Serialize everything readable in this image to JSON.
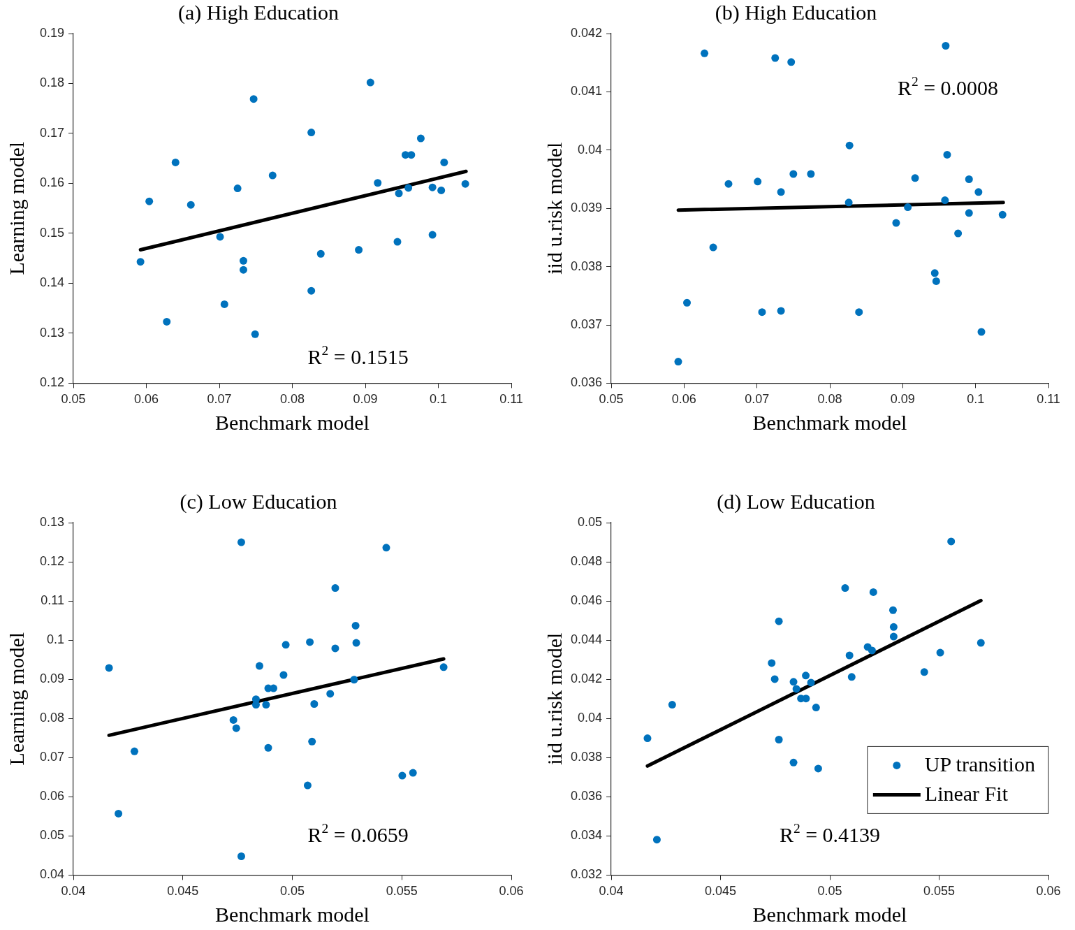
{
  "chart_data": [
    {
      "type": "scatter",
      "title": "(a) High Education",
      "xlabel": "Benchmark model",
      "ylabel": "Learning model",
      "xlim": [
        0.05,
        0.11
      ],
      "xticks": [
        0.05,
        0.06,
        0.07,
        0.08,
        0.09,
        0.1,
        0.11
      ],
      "ylim": [
        0.12,
        0.19
      ],
      "yticks": [
        0.12,
        0.13,
        0.14,
        0.15,
        0.16,
        0.17,
        0.18,
        0.19
      ],
      "grid": false,
      "legend": false,
      "marker": "circle",
      "annotations": [
        "R$^{2}$ = 0.1515"
      ],
      "series": [
        {
          "color": "#0072bd",
          "x": [
            0.0592,
            0.0604,
            0.0628,
            0.064,
            0.0661,
            0.0701,
            0.0707,
            0.0725,
            0.0733,
            0.0733,
            0.0747,
            0.0749,
            0.0773,
            0.0826,
            0.0826,
            0.0839,
            0.0891,
            0.0907,
            0.0917,
            0.0944,
            0.0946,
            0.0955,
            0.0963,
            0.0959,
            0.0976,
            0.0992,
            0.0992,
            0.1004,
            0.1008,
            0.1037
          ],
          "values": [
            0.1443,
            0.1564,
            0.1323,
            0.1642,
            0.1557,
            0.1493,
            0.1358,
            0.159,
            0.1445,
            0.1427,
            0.1769,
            0.1298,
            0.1616,
            0.1702,
            0.1385,
            0.1459,
            0.1467,
            0.1802,
            0.1601,
            0.1483,
            0.158,
            0.1657,
            0.1657,
            0.1591,
            0.169,
            0.1592,
            0.1497,
            0.1586,
            0.1642,
            0.1599
          ]
        },
        {
          "type": "line",
          "color": "#000000",
          "line_style": "solid",
          "marker": "none",
          "x": [
            0.0592,
            0.1038
          ],
          "values": [
            0.1467,
            0.1624
          ]
        }
      ]
    },
    {
      "type": "scatter",
      "title": "(b) High Education",
      "xlabel": "Benchmark model",
      "ylabel": "iid u.risk model",
      "xlim": [
        0.05,
        0.11
      ],
      "xticks": [
        0.05,
        0.06,
        0.07,
        0.08,
        0.09,
        0.1,
        0.11
      ],
      "ylim": [
        0.036,
        0.042
      ],
      "yticks": [
        0.036,
        0.037,
        0.038,
        0.039,
        0.04,
        0.041,
        0.042
      ],
      "grid": false,
      "legend": false,
      "marker": "circle",
      "annotations": [
        "R$^{2}$ = 0.0008"
      ],
      "series": [
        {
          "color": "#0072bd",
          "x": [
            0.0592,
            0.0604,
            0.0628,
            0.064,
            0.0661,
            0.0701,
            0.0707,
            0.0725,
            0.0733,
            0.0733,
            0.0747,
            0.075,
            0.0774,
            0.0827,
            0.0826,
            0.084,
            0.0891,
            0.0907,
            0.0917,
            0.0944,
            0.0946,
            0.0959,
            0.0961,
            0.0958,
            0.0976,
            0.0991,
            0.0991,
            0.1004,
            0.1008,
            0.1037
          ],
          "values": [
            0.03637,
            0.03738,
            0.04166,
            0.03833,
            0.03942,
            0.03946,
            0.03722,
            0.04158,
            0.03928,
            0.03724,
            0.04151,
            0.03959,
            0.03959,
            0.04008,
            0.0391,
            0.03722,
            0.03875,
            0.03902,
            0.03952,
            0.03789,
            0.03775,
            0.04179,
            0.03992,
            0.03914,
            0.03857,
            0.0395,
            0.03892,
            0.03928,
            0.03688,
            0.03889
          ]
        },
        {
          "type": "line",
          "color": "#000000",
          "line_style": "solid",
          "marker": "none",
          "x": [
            0.0592,
            0.1038
          ],
          "values": [
            0.03897,
            0.0391
          ]
        }
      ]
    },
    {
      "type": "scatter",
      "title": "(c) Low Education",
      "xlabel": "Benchmark model",
      "ylabel": "Learning model",
      "xlim": [
        0.04,
        0.06
      ],
      "xticks": [
        0.04,
        0.045,
        0.05,
        0.055,
        0.06
      ],
      "ylim": [
        0.04,
        0.13
      ],
      "yticks": [
        0.04,
        0.05,
        0.06,
        0.07,
        0.08,
        0.09,
        0.1,
        0.11,
        0.12,
        0.13
      ],
      "grid": false,
      "legend": false,
      "marker": "circle",
      "annotations": [
        "R$^{2}$ = 0.0659"
      ],
      "series": [
        {
          "color": "#0072bd",
          "x": [
            0.04163,
            0.04206,
            0.04279,
            0.04731,
            0.04744,
            0.04767,
            0.04767,
            0.04834,
            0.04834,
            0.0485,
            0.0488,
            0.0489,
            0.04914,
            0.0489,
            0.0496,
            0.0497,
            0.0507,
            0.0508,
            0.0509,
            0.051,
            0.05173,
            0.05196,
            0.05196,
            0.05282,
            0.05289,
            0.05292,
            0.05429,
            0.05502,
            0.05551,
            0.05691
          ],
          "values": [
            0.0929,
            0.0557,
            0.0716,
            0.0796,
            0.0775,
            0.125,
            0.0448,
            0.0849,
            0.0835,
            0.0934,
            0.0835,
            0.0877,
            0.0877,
            0.0725,
            0.0911,
            0.0988,
            0.0629,
            0.0995,
            0.0741,
            0.0837,
            0.0863,
            0.0979,
            0.1133,
            0.0899,
            0.1037,
            0.0993,
            0.1236,
            0.0654,
            0.0661,
            0.0931
          ]
        },
        {
          "type": "line",
          "color": "#000000",
          "line_style": "solid",
          "marker": "none",
          "x": [
            0.04163,
            0.05691
          ],
          "values": [
            0.0757,
            0.0952
          ]
        }
      ]
    },
    {
      "type": "scatter",
      "title": "(d) Low Education",
      "xlabel": "Benchmark model",
      "ylabel": "iid u.risk model",
      "xlim": [
        0.04,
        0.06
      ],
      "xticks": [
        0.04,
        0.045,
        0.05,
        0.055,
        0.06
      ],
      "ylim": [
        0.032,
        0.05
      ],
      "yticks": [
        0.032,
        0.034,
        0.036,
        0.038,
        0.04,
        0.042,
        0.044,
        0.046,
        0.048,
        0.05
      ],
      "grid": false,
      "legend": "bottom right",
      "marker": "circle",
      "annotations": [
        "R$^{2}$ = 0.4139"
      ],
      "series": [
        {
          "name": "UP transition",
          "color": "#0072bd",
          "x": [
            0.04166,
            0.04209,
            0.04279,
            0.04734,
            0.04748,
            0.04767,
            0.04767,
            0.04834,
            0.04834,
            0.04847,
            0.04868,
            0.04891,
            0.0489,
            0.04914,
            0.04937,
            0.04947,
            0.0507,
            0.0509,
            0.051,
            0.05173,
            0.05193,
            0.05199,
            0.05289,
            0.05292,
            0.05292,
            0.05432,
            0.05505,
            0.05555,
            0.05691
          ],
          "values": [
            0.03899,
            0.03381,
            0.0407,
            0.04283,
            0.04201,
            0.04496,
            0.03892,
            0.04187,
            0.03775,
            0.04151,
            0.04102,
            0.04102,
            0.04219,
            0.04183,
            0.04056,
            0.03744,
            0.04666,
            0.04322,
            0.04212,
            0.04365,
            0.04347,
            0.04645,
            0.04553,
            0.04467,
            0.04418,
            0.04237,
            0.04336,
            0.04904,
            0.04386
          ]
        },
        {
          "name": "Linear Fit",
          "type": "line",
          "color": "#000000",
          "line_style": "solid",
          "marker": "none",
          "x": [
            0.04166,
            0.05691
          ],
          "values": [
            0.03757,
            0.04602
          ]
        }
      ]
    }
  ]
}
